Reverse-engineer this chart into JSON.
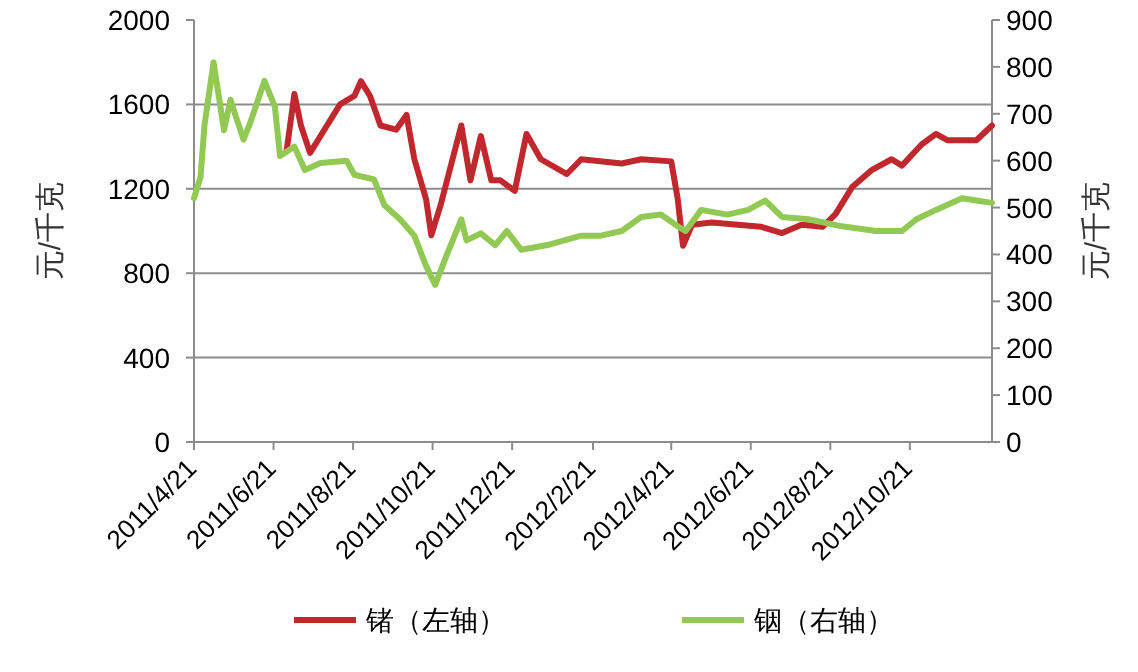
{
  "chart_data": {
    "type": "line",
    "ylabel": "元/千克",
    "y2label": "元/千克",
    "xlim": [
      "2011-04-21",
      "2012-12-23"
    ],
    "xticks": [
      {
        "value": "2011-04-21",
        "label": "2011/4/21"
      },
      {
        "value": "2011-06-21",
        "label": "2011/6/21"
      },
      {
        "value": "2011-08-21",
        "label": "2011/8/21"
      },
      {
        "value": "2011-10-21",
        "label": "2011/10/21"
      },
      {
        "value": "2011-12-21",
        "label": "2011/12/21"
      },
      {
        "value": "2012-02-21",
        "label": "2012/2/21"
      },
      {
        "value": "2012-04-21",
        "label": "2012/4/21"
      },
      {
        "value": "2012-06-21",
        "label": "2012/6/21"
      },
      {
        "value": "2012-08-21",
        "label": "2012/8/21"
      },
      {
        "value": "2012-10-21",
        "label": "2012/10/21"
      }
    ],
    "ylim": [
      0,
      2000
    ],
    "yticks": [
      0,
      400,
      800,
      1200,
      1600,
      2000
    ],
    "y2lim": [
      0,
      900
    ],
    "y2ticks": [
      0,
      100,
      200,
      300,
      400,
      500,
      600,
      700,
      800,
      900
    ],
    "grid": "y",
    "legend": "bottom",
    "series": [
      {
        "name": "锗（左轴）",
        "color": "#c0282d",
        "axis": "y",
        "x": [
          "2011-07-01",
          "2011-07-07",
          "2011-07-12",
          "2011-07-19",
          "2011-08-01",
          "2011-08-11",
          "2011-08-22",
          "2011-08-27",
          "2011-09-03",
          "2011-09-11",
          "2011-09-23",
          "2011-10-01",
          "2011-10-07",
          "2011-10-16",
          "2011-10-20",
          "2011-10-27",
          "2011-11-12",
          "2011-11-19",
          "2011-11-27",
          "2011-12-05",
          "2011-12-12",
          "2011-12-23",
          "2012-01-01",
          "2012-01-12",
          "2012-02-01",
          "2012-02-12",
          "2012-03-14",
          "2012-03-29",
          "2012-04-21",
          "2012-04-26",
          "2012-04-30",
          "2012-05-07",
          "2012-05-22",
          "2012-06-29",
          "2012-07-15",
          "2012-07-30",
          "2012-08-15",
          "2012-08-25",
          "2012-09-07",
          "2012-09-22",
          "2012-10-07",
          "2012-10-15",
          "2012-10-30",
          "2012-11-10",
          "2012-11-19",
          "2012-12-11",
          "2012-12-23"
        ],
        "values": [
          1380,
          1650,
          1500,
          1370,
          1500,
          1600,
          1640,
          1710,
          1640,
          1500,
          1480,
          1550,
          1340,
          1150,
          980,
          1120,
          1500,
          1240,
          1450,
          1240,
          1240,
          1190,
          1460,
          1340,
          1270,
          1340,
          1320,
          1340,
          1330,
          1150,
          930,
          1030,
          1040,
          1020,
          990,
          1030,
          1020,
          1080,
          1210,
          1290,
          1340,
          1310,
          1410,
          1460,
          1430,
          1430,
          1500
        ]
      },
      {
        "name": "铟（右轴）",
        "color": "#92c854",
        "axis": "y2",
        "x": [
          "2011-04-21",
          "2011-04-26",
          "2011-04-29",
          "2011-05-06",
          "2011-05-14",
          "2011-05-19",
          "2011-05-23",
          "2011-05-29",
          "2011-06-03",
          "2011-06-14",
          "2011-06-22",
          "2011-06-26",
          "2011-07-07",
          "2011-07-15",
          "2011-07-27",
          "2011-08-16",
          "2011-08-22",
          "2011-09-06",
          "2011-09-14",
          "2011-09-26",
          "2011-10-07",
          "2011-10-16",
          "2011-10-23",
          "2011-11-01",
          "2011-11-12",
          "2011-11-16",
          "2011-11-27",
          "2011-12-08",
          "2011-12-17",
          "2011-12-28",
          "2012-01-17",
          "2012-02-12",
          "2012-02-27",
          "2012-03-14",
          "2012-03-29",
          "2012-04-13",
          "2012-04-26",
          "2012-05-02",
          "2012-05-14",
          "2012-06-03",
          "2012-06-19",
          "2012-07-02",
          "2012-07-15",
          "2012-08-04",
          "2012-08-30",
          "2012-09-25",
          "2012-10-15",
          "2012-10-26",
          "2012-11-10",
          "2012-11-30",
          "2012-12-11",
          "2012-12-23"
        ],
        "values": [
          520,
          565,
          675,
          810,
          665,
          730,
          695,
          645,
          680,
          770,
          715,
          610,
          630,
          580,
          595,
          600,
          570,
          560,
          505,
          475,
          440,
          375,
          335,
          400,
          475,
          430,
          445,
          420,
          450,
          410,
          420,
          440,
          440,
          450,
          480,
          485,
          460,
          450,
          495,
          485,
          495,
          515,
          480,
          475,
          460,
          450,
          450,
          475,
          495,
          520,
          515,
          510
        ]
      }
    ]
  }
}
